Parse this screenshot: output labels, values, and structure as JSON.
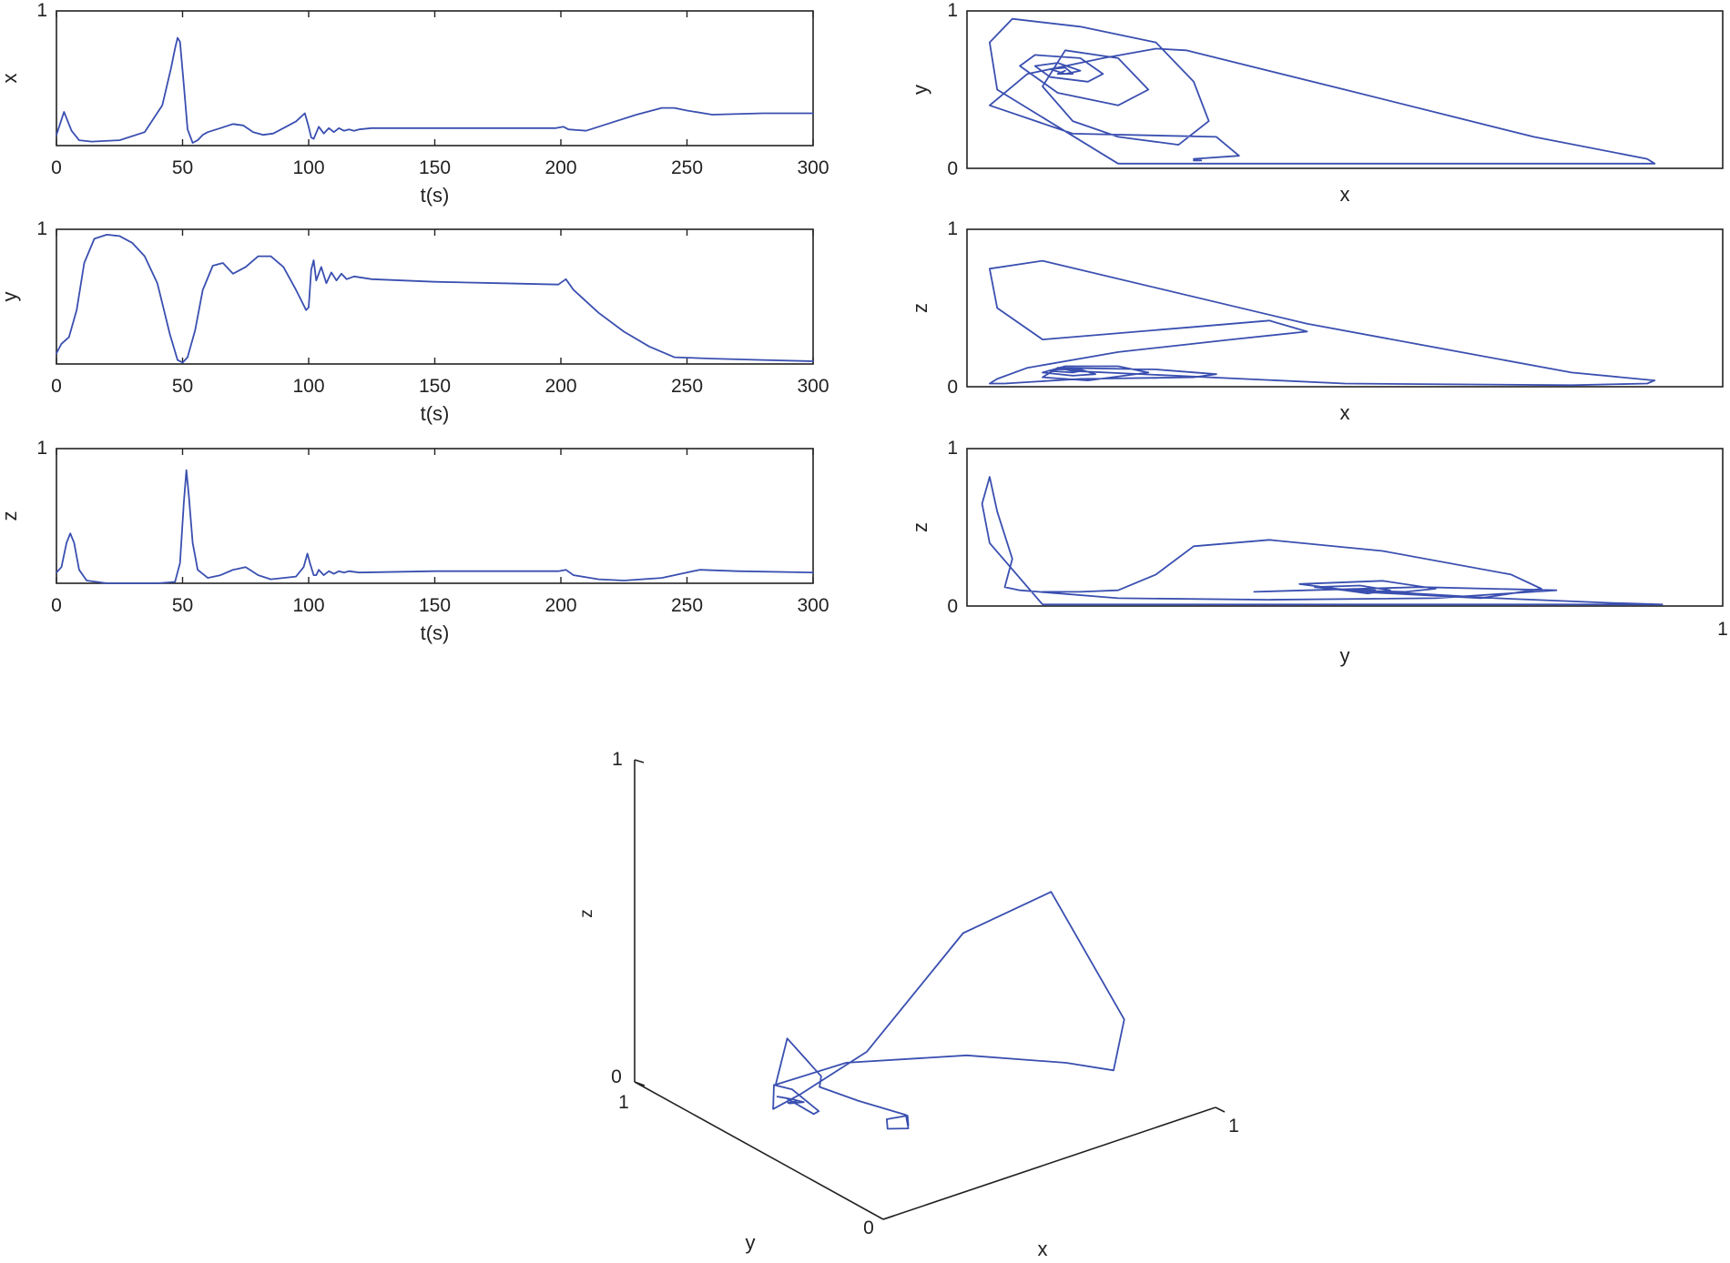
{
  "colors": {
    "line": "#3a4fb0",
    "axis": "#222222",
    "background": "#ffffff"
  },
  "chart_data": [
    {
      "type": "line",
      "id": "ts-x",
      "xlabel": "t(s)",
      "ylabel": "x",
      "xlim": [
        0,
        300
      ],
      "ylim": [
        0,
        1
      ],
      "xticks": [
        "0",
        "50",
        "100",
        "150",
        "200",
        "250",
        "300"
      ],
      "yticks": [
        "1"
      ],
      "series": [
        {
          "x": [
            0,
            3,
            6,
            9,
            14,
            25,
            35,
            42,
            45.5,
            47,
            48,
            49,
            50.5,
            52,
            54,
            56,
            58,
            60,
            65,
            70,
            74,
            78,
            82,
            86,
            90,
            95,
            98.5,
            100,
            101,
            102,
            104,
            106,
            108,
            110,
            112,
            114,
            116,
            118,
            120,
            125,
            150,
            175,
            198,
            201,
            203,
            210,
            220,
            230,
            240,
            245,
            250,
            260,
            280,
            300
          ],
          "y": [
            0.08,
            0.25,
            0.11,
            0.04,
            0.03,
            0.04,
            0.1,
            0.3,
            0.58,
            0.72,
            0.8,
            0.77,
            0.45,
            0.12,
            0.02,
            0.04,
            0.08,
            0.1,
            0.13,
            0.16,
            0.15,
            0.1,
            0.08,
            0.09,
            0.13,
            0.18,
            0.24,
            0.14,
            0.06,
            0.05,
            0.14,
            0.09,
            0.13,
            0.1,
            0.13,
            0.11,
            0.12,
            0.11,
            0.12,
            0.13,
            0.13,
            0.13,
            0.13,
            0.14,
            0.12,
            0.11,
            0.17,
            0.23,
            0.28,
            0.28,
            0.26,
            0.23,
            0.24,
            0.24
          ]
        }
      ]
    },
    {
      "type": "line",
      "id": "ts-y",
      "xlabel": "t(s)",
      "ylabel": "y",
      "xlim": [
        0,
        300
      ],
      "ylim": [
        0,
        1
      ],
      "xticks": [
        "0",
        "50",
        "100",
        "150",
        "200",
        "250",
        "300"
      ],
      "yticks": [
        "1"
      ],
      "series": [
        {
          "x": [
            0,
            2,
            5,
            8,
            11,
            15,
            20,
            25,
            30,
            35,
            40,
            45,
            48,
            50,
            52,
            55,
            58,
            62,
            66,
            70,
            75,
            80,
            85,
            90,
            95,
            99,
            100,
            101,
            102,
            103,
            105,
            107,
            109,
            111,
            113,
            115,
            118,
            125,
            150,
            175,
            199,
            202,
            205,
            215,
            225,
            235,
            245,
            260,
            280,
            300
          ],
          "y": [
            0.08,
            0.15,
            0.2,
            0.4,
            0.75,
            0.93,
            0.96,
            0.95,
            0.9,
            0.8,
            0.6,
            0.22,
            0.03,
            0.01,
            0.05,
            0.25,
            0.55,
            0.73,
            0.75,
            0.67,
            0.72,
            0.8,
            0.8,
            0.72,
            0.55,
            0.4,
            0.42,
            0.7,
            0.77,
            0.62,
            0.72,
            0.6,
            0.68,
            0.62,
            0.67,
            0.63,
            0.65,
            0.63,
            0.61,
            0.6,
            0.59,
            0.63,
            0.55,
            0.38,
            0.24,
            0.13,
            0.05,
            0.04,
            0.03,
            0.02
          ]
        }
      ]
    },
    {
      "type": "line",
      "id": "ts-z",
      "xlabel": "t(s)",
      "ylabel": "z",
      "xlim": [
        0,
        300
      ],
      "ylim": [
        0,
        1
      ],
      "xticks": [
        "0",
        "50",
        "100",
        "150",
        "200",
        "250",
        "300"
      ],
      "yticks": [
        "1"
      ],
      "series": [
        {
          "x": [
            0,
            2,
            4,
            5.5,
            7,
            9,
            12,
            16,
            20,
            30,
            40,
            47,
            49,
            50.5,
            51.5,
            52.5,
            54,
            56,
            60,
            65,
            70,
            75,
            80,
            85,
            90,
            95,
            98,
            99.5,
            100.5,
            102,
            103,
            104,
            106,
            108,
            110,
            112,
            114,
            116,
            120,
            150,
            199,
            202,
            205,
            215,
            225,
            240,
            255,
            270,
            300
          ],
          "y": [
            0.08,
            0.12,
            0.3,
            0.37,
            0.3,
            0.1,
            0.02,
            0.01,
            0,
            0,
            0,
            0.01,
            0.15,
            0.6,
            0.84,
            0.65,
            0.3,
            0.1,
            0.04,
            0.06,
            0.1,
            0.12,
            0.06,
            0.03,
            0.04,
            0.05,
            0.12,
            0.22,
            0.15,
            0.06,
            0.06,
            0.1,
            0.06,
            0.09,
            0.07,
            0.09,
            0.08,
            0.09,
            0.08,
            0.09,
            0.09,
            0.1,
            0.06,
            0.03,
            0.02,
            0.04,
            0.1,
            0.09,
            0.08
          ]
        }
      ]
    },
    {
      "type": "line",
      "id": "ph-xy",
      "xlabel": "x",
      "ylabel": "y",
      "xlim": [
        0,
        1
      ],
      "ylim": [
        0,
        1
      ],
      "xticks": [],
      "yticks": [
        "0",
        "1"
      ],
      "series": [
        {
          "x": [
            0.3,
            0.31,
            0.3,
            0.36,
            0.33,
            0.14,
            0.03,
            0.08,
            0.18,
            0.25,
            0.29,
            0.5,
            0.75,
            0.9,
            0.91,
            0.8,
            0.5,
            0.2,
            0.04,
            0.03,
            0.06,
            0.15,
            0.25,
            0.3,
            0.32,
            0.28,
            0.2,
            0.14,
            0.1,
            0.13,
            0.2,
            0.24,
            0.2,
            0.12,
            0.07,
            0.09,
            0.15,
            0.18,
            0.16,
            0.11,
            0.09,
            0.12,
            0.15,
            0.13,
            0.11,
            0.13,
            0.14,
            0.12,
            0.13
          ],
          "y": [
            0.05,
            0.05,
            0.06,
            0.08,
            0.2,
            0.22,
            0.4,
            0.6,
            0.7,
            0.76,
            0.75,
            0.5,
            0.2,
            0.06,
            0.03,
            0.03,
            0.03,
            0.03,
            0.5,
            0.8,
            0.95,
            0.9,
            0.8,
            0.55,
            0.3,
            0.15,
            0.2,
            0.3,
            0.52,
            0.75,
            0.7,
            0.5,
            0.4,
            0.48,
            0.65,
            0.72,
            0.7,
            0.6,
            0.55,
            0.58,
            0.65,
            0.67,
            0.62,
            0.6,
            0.63,
            0.64,
            0.6,
            0.6,
            0.62
          ]
        }
      ]
    },
    {
      "type": "line",
      "id": "ph-xz",
      "xlabel": "x",
      "ylabel": "z",
      "xlim": [
        0,
        1
      ],
      "ylim": [
        0,
        1
      ],
      "xticks": [],
      "yticks": [
        "0",
        "1"
      ],
      "series": [
        {
          "x": [
            0.03,
            0.05,
            0.15,
            0.3,
            0.33,
            0.25,
            0.12,
            0.1,
            0.16,
            0.24,
            0.2,
            0.13,
            0.1,
            0.14,
            0.17,
            0.15,
            0.12,
            0.11,
            0.14,
            0.15,
            0.13,
            0.14,
            0.5,
            0.8,
            0.9,
            0.91,
            0.8,
            0.45,
            0.1,
            0.03,
            0.04,
            0.1,
            0.3,
            0.4,
            0.45,
            0.35,
            0.2,
            0.08,
            0.04,
            0.03
          ],
          "y": [
            0.02,
            0.02,
            0.05,
            0.06,
            0.08,
            0.11,
            0.12,
            0.06,
            0.04,
            0.09,
            0.13,
            0.13,
            0.09,
            0.07,
            0.08,
            0.11,
            0.11,
            0.1,
            0.09,
            0.1,
            0.11,
            0.1,
            0.02,
            0.01,
            0.02,
            0.04,
            0.09,
            0.4,
            0.8,
            0.75,
            0.5,
            0.3,
            0.38,
            0.42,
            0.35,
            0.3,
            0.22,
            0.12,
            0.05,
            0.02
          ]
        }
      ]
    },
    {
      "type": "line",
      "id": "ph-yz",
      "xlabel": "y",
      "ylabel": "z",
      "xlim": [
        0,
        1
      ],
      "ylim": [
        0,
        1
      ],
      "xticks": [
        "1"
      ],
      "yticks": [
        "0",
        "1"
      ],
      "series": [
        {
          "x": [
            0.1,
            0.15,
            0.2,
            0.25,
            0.3,
            0.4,
            0.55,
            0.72,
            0.76,
            0.68,
            0.52,
            0.44,
            0.55,
            0.62,
            0.58,
            0.5,
            0.46,
            0.52,
            0.56,
            0.53,
            0.5,
            0.52,
            0.54,
            0.52,
            0.51,
            0.53,
            0.52,
            0.7,
            0.85,
            0.92,
            0.7,
            0.35,
            0.1,
            0.03,
            0.02,
            0.03,
            0.04,
            0.06,
            0.05,
            0.07,
            0.2,
            0.4,
            0.62,
            0.78,
            0.6,
            0.45,
            0.38
          ],
          "y": [
            0.09,
            0.09,
            0.1,
            0.2,
            0.38,
            0.42,
            0.35,
            0.2,
            0.11,
            0.05,
            0.09,
            0.14,
            0.16,
            0.11,
            0.09,
            0.1,
            0.12,
            0.13,
            0.1,
            0.08,
            0.1,
            0.11,
            0.1,
            0.09,
            0.1,
            0.11,
            0.1,
            0.05,
            0.02,
            0.01,
            0.01,
            0.01,
            0.01,
            0.4,
            0.65,
            0.82,
            0.6,
            0.3,
            0.12,
            0.1,
            0.05,
            0.04,
            0.05,
            0.1,
            0.12,
            0.1,
            0.09
          ]
        }
      ]
    },
    {
      "type": "line",
      "id": "ph-3d",
      "xlabel": "x",
      "ylabel": "y",
      "zlabel": "z",
      "xlim": [
        0,
        1
      ],
      "ylim": [
        0,
        1
      ],
      "zlim": [
        0,
        1
      ],
      "xticks": [
        "1"
      ],
      "yticks": [
        "0",
        "1"
      ],
      "zticks": [
        "0",
        "1"
      ],
      "series": [
        {
          "x": [
            0.3,
            0.32,
            0.28,
            0.26,
            0.3,
            0.33,
            0.3,
            0.22,
            0.15,
            0.16,
            0.2,
            0.45,
            0.7,
            0.85,
            0.88,
            0.8,
            0.55,
            0.3,
            0.1,
            0.05,
            0.08,
            0.12,
            0.16,
            0.18,
            0.15,
            0.12,
            0.13,
            0.16,
            0.15,
            0.13,
            0.14,
            0.15,
            0.14
          ],
          "y": [
            0.3,
            0.33,
            0.36,
            0.33,
            0.3,
            0.35,
            0.5,
            0.55,
            0.45,
            0.6,
            0.7,
            0.75,
            0.6,
            0.4,
            0.25,
            0.1,
            0.06,
            0.08,
            0.2,
            0.4,
            0.55,
            0.6,
            0.58,
            0.5,
            0.48,
            0.55,
            0.6,
            0.58,
            0.52,
            0.55,
            0.57,
            0.55,
            0.54
          ],
          "z": [
            0.06,
            0.07,
            0.06,
            0.05,
            0.05,
            0.06,
            0.05,
            0.1,
            0.2,
            0.25,
            0.05,
            0.01,
            0.01,
            0.02,
            0.05,
            0.3,
            0.8,
            0.75,
            0.4,
            0.2,
            0.08,
            0.12,
            0.1,
            0.06,
            0.07,
            0.1,
            0.08,
            0.07,
            0.09,
            0.08,
            0.07,
            0.08,
            0.08
          ]
        }
      ]
    }
  ]
}
